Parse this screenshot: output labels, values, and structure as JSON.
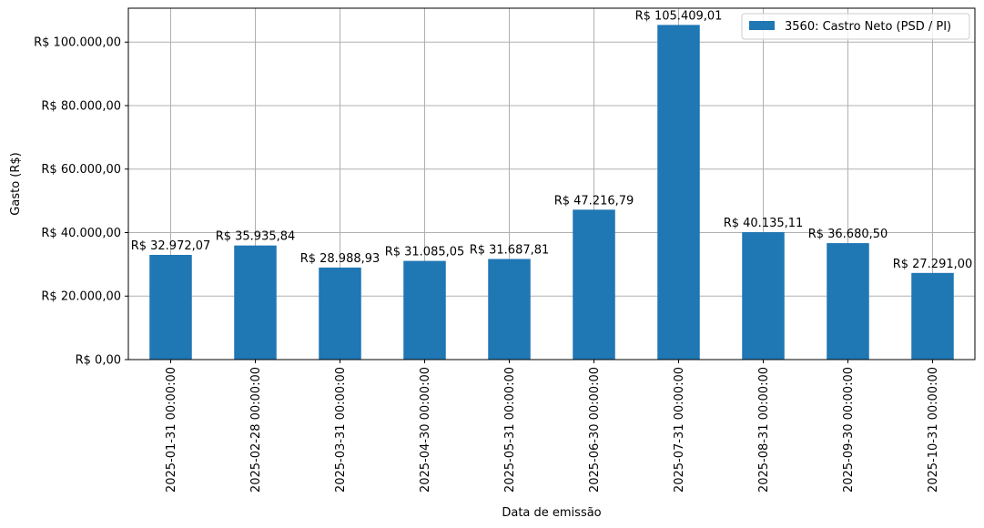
{
  "chart_data": {
    "type": "bar",
    "xlabel": "Data de emissão",
    "ylabel": "Gasto (R$)",
    "ylim": [
      0,
      110679.46
    ],
    "yticks": [
      0,
      20000,
      40000,
      60000,
      80000,
      100000
    ],
    "ytick_labels": [
      "R$ 0,00",
      "R$ 20.000,00",
      "R$ 40.000,00",
      "R$ 60.000,00",
      "R$ 80.000,00",
      "R$ 100.000,00"
    ],
    "grid": true,
    "legend_position": "top-right",
    "categories": [
      "2025-01-31 00:00:00",
      "2025-02-28 00:00:00",
      "2025-03-31 00:00:00",
      "2025-04-30 00:00:00",
      "2025-05-31 00:00:00",
      "2025-06-30 00:00:00",
      "2025-07-31 00:00:00",
      "2025-08-31 00:00:00",
      "2025-09-30 00:00:00",
      "2025-10-31 00:00:00"
    ],
    "series": [
      {
        "name": "3560: Castro Neto (PSD / PI)",
        "color": "#1f77b4",
        "values": [
          32972.07,
          35935.84,
          28988.93,
          31085.05,
          31687.81,
          47216.79,
          105409.01,
          40135.11,
          36680.5,
          27291.0
        ],
        "value_labels": [
          "R$ 32.972,07",
          "R$ 35.935,84",
          "R$ 28.988,93",
          "R$ 31.085,05",
          "R$ 31.687,81",
          "R$ 47.216,79",
          "R$ 105.409,01",
          "R$ 40.135,11",
          "R$ 36.680,50",
          "R$ 27.291,00"
        ]
      }
    ]
  }
}
